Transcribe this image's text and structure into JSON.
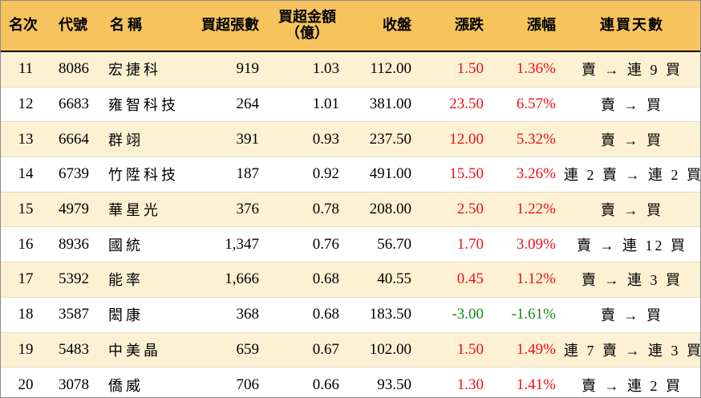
{
  "colors": {
    "header_bg": "#f6c35d",
    "odd_row_bg": "#fdf1d4",
    "up": "#e8101a",
    "down": "#178a1a"
  },
  "headers": {
    "rank": "名次",
    "code": "代號",
    "name": "名稱",
    "net_lots": "買超張數",
    "net_amount_line1": "買超金額",
    "net_amount_line2": "（億）",
    "close": "收盤",
    "change": "漲跌",
    "change_pct": "漲幅",
    "streak": "連買天數"
  },
  "rows": [
    {
      "rank": "11",
      "code": "8086",
      "name": "宏捷科",
      "net_lots": "919",
      "net_amount": "1.03",
      "close": "112.00",
      "change": "1.50",
      "change_pct": "1.36%",
      "streak": "賣 → 連 9 買",
      "dir": "up"
    },
    {
      "rank": "12",
      "code": "6683",
      "name": "雍智科技",
      "net_lots": "264",
      "net_amount": "1.01",
      "close": "381.00",
      "change": "23.50",
      "change_pct": "6.57%",
      "streak": "賣 → 買",
      "dir": "up"
    },
    {
      "rank": "13",
      "code": "6664",
      "name": "群翊",
      "net_lots": "391",
      "net_amount": "0.93",
      "close": "237.50",
      "change": "12.00",
      "change_pct": "5.32%",
      "streak": "賣 → 買",
      "dir": "up"
    },
    {
      "rank": "14",
      "code": "6739",
      "name": "竹陞科技",
      "net_lots": "187",
      "net_amount": "0.92",
      "close": "491.00",
      "change": "15.50",
      "change_pct": "3.26%",
      "streak": "連 2 賣 → 連 2 買",
      "dir": "up"
    },
    {
      "rank": "15",
      "code": "4979",
      "name": "華星光",
      "net_lots": "376",
      "net_amount": "0.78",
      "close": "208.00",
      "change": "2.50",
      "change_pct": "1.22%",
      "streak": "賣 → 買",
      "dir": "up"
    },
    {
      "rank": "16",
      "code": "8936",
      "name": "國統",
      "net_lots": "1,347",
      "net_amount": "0.76",
      "close": "56.70",
      "change": "1.70",
      "change_pct": "3.09%",
      "streak": "賣 → 連 12 買",
      "dir": "up"
    },
    {
      "rank": "17",
      "code": "5392",
      "name": "能率",
      "net_lots": "1,666",
      "net_amount": "0.68",
      "close": "40.55",
      "change": "0.45",
      "change_pct": "1.12%",
      "streak": "賣 → 連 3 買",
      "dir": "up"
    },
    {
      "rank": "18",
      "code": "3587",
      "name": "閎康",
      "net_lots": "368",
      "net_amount": "0.68",
      "close": "183.50",
      "change": "-3.00",
      "change_pct": "-1.61%",
      "streak": "賣 → 買",
      "dir": "down"
    },
    {
      "rank": "19",
      "code": "5483",
      "name": "中美晶",
      "net_lots": "659",
      "net_amount": "0.67",
      "close": "102.00",
      "change": "1.50",
      "change_pct": "1.49%",
      "streak": "連 7 賣 → 連 3 買",
      "dir": "up"
    },
    {
      "rank": "20",
      "code": "3078",
      "name": "僑威",
      "net_lots": "706",
      "net_amount": "0.66",
      "close": "93.50",
      "change": "1.30",
      "change_pct": "1.41%",
      "streak": "賣 → 連 2 買",
      "dir": "up"
    }
  ]
}
